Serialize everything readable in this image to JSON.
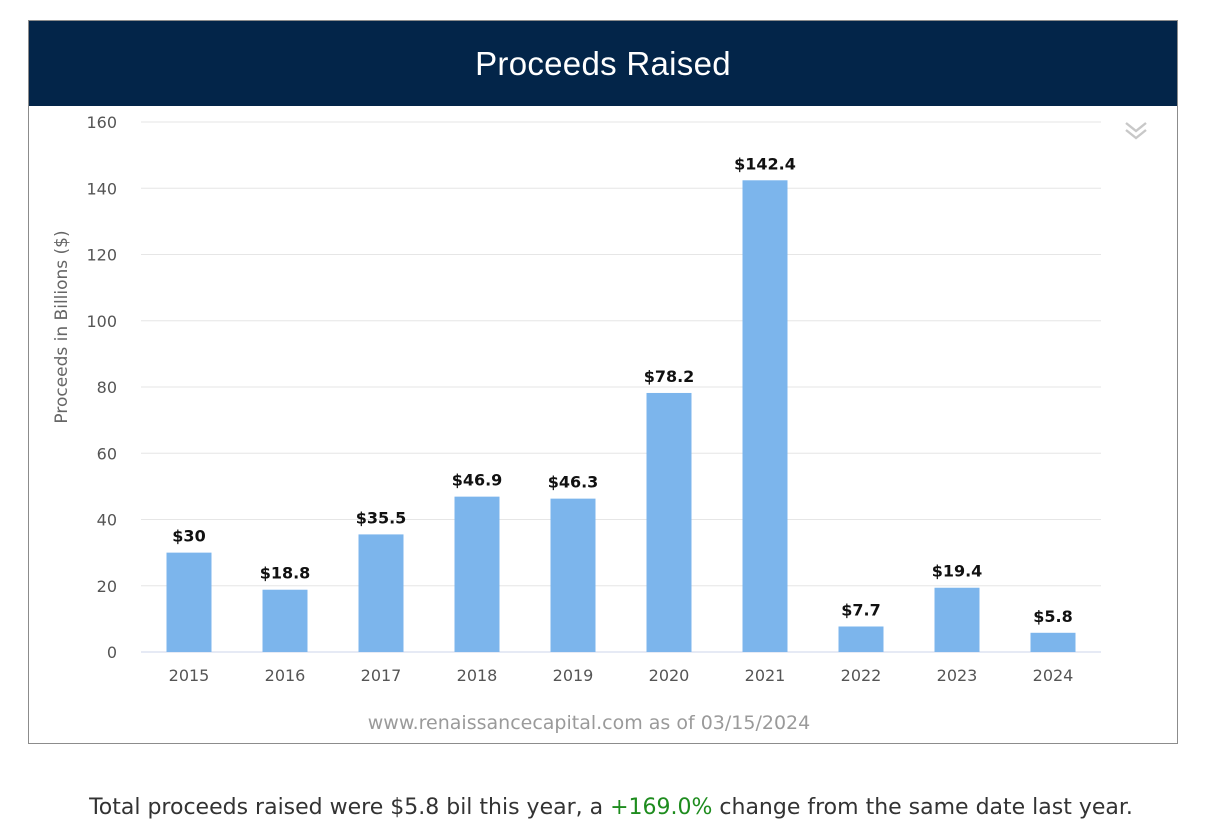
{
  "header": {
    "title": "Proceeds Raised"
  },
  "colors": {
    "header_bg": "#032549",
    "bar": "#7cb5ec",
    "positive_change": "#1e8c1e"
  },
  "menu": {
    "icon": "double-chevron-down-icon"
  },
  "credit": "www.renaissancecapital.com as of 03/15/2024",
  "summary": {
    "prefix": "Total proceeds raised were $5.8 bil this year, a ",
    "change": "+169.0%",
    "suffix": " change from the same date last year."
  },
  "chart_data": {
    "type": "bar",
    "title": "Proceeds Raised",
    "xlabel": "",
    "ylabel": "Proceeds in Billions ($)",
    "ylim": [
      0,
      160
    ],
    "yticks": [
      0,
      20,
      40,
      60,
      80,
      100,
      120,
      140,
      160
    ],
    "grid": true,
    "categories": [
      "2015",
      "2016",
      "2017",
      "2018",
      "2019",
      "2020",
      "2021",
      "2022",
      "2023",
      "2024"
    ],
    "values": [
      30,
      18.8,
      35.5,
      46.9,
      46.3,
      78.2,
      142.4,
      7.7,
      19.4,
      5.8
    ],
    "data_labels": [
      "$30",
      "$18.8",
      "$35.5",
      "$46.9",
      "$46.3",
      "$78.2",
      "$142.4",
      "$7.7",
      "$19.4",
      "$5.8"
    ]
  }
}
